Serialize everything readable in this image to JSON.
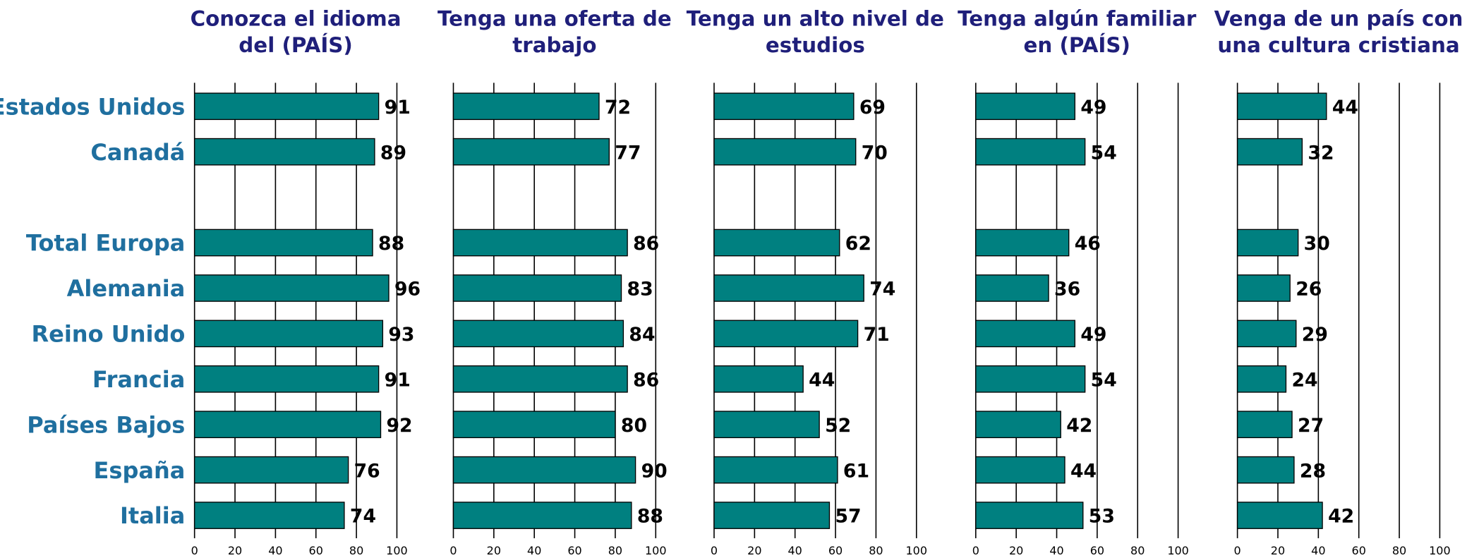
{
  "chart_data": [
    {
      "type": "bar",
      "orientation": "horizontal",
      "title": [
        "Conozca el idioma",
        "del (PAÍS)"
      ],
      "categories": [
        "Estados Unidos",
        "Canadá",
        null,
        "Total Europa",
        "Alemania",
        "Reino Unido",
        "Francia",
        "Países Bajos",
        "España",
        "Italia"
      ],
      "values": [
        91,
        89,
        null,
        88,
        96,
        93,
        91,
        92,
        76,
        74
      ],
      "color": "#008080",
      "xlim": [
        0,
        100
      ],
      "xticks": [
        0,
        20,
        40,
        60,
        80,
        100
      ],
      "grid": true
    },
    {
      "type": "bar",
      "orientation": "horizontal",
      "title": [
        "Tenga una oferta de",
        "trabajo"
      ],
      "values": [
        72,
        77,
        null,
        86,
        83,
        84,
        86,
        80,
        90,
        88
      ],
      "color": "#008080",
      "xlim": [
        0,
        100
      ],
      "xticks": [
        0,
        20,
        40,
        60,
        80,
        100
      ],
      "grid": true
    },
    {
      "type": "bar",
      "orientation": "horizontal",
      "title": [
        "Tenga un alto nivel de",
        "estudios"
      ],
      "values": [
        69,
        70,
        null,
        62,
        74,
        71,
        44,
        52,
        61,
        57
      ],
      "color": "#008080",
      "xlim": [
        0,
        100
      ],
      "xticks": [
        0,
        20,
        40,
        60,
        80,
        100
      ],
      "grid": true
    },
    {
      "type": "bar",
      "orientation": "horizontal",
      "title": [
        "Tenga algún familiar",
        "en (PAÍS)"
      ],
      "values": [
        49,
        54,
        null,
        46,
        36,
        49,
        54,
        42,
        44,
        53
      ],
      "color": "#008080",
      "xlim": [
        0,
        100
      ],
      "xticks": [
        0,
        20,
        40,
        60,
        80,
        100
      ],
      "grid": true
    },
    {
      "type": "bar",
      "orientation": "horizontal",
      "title": [
        "Venga de un país con",
        "una cultura cristiana"
      ],
      "values": [
        44,
        32,
        null,
        30,
        26,
        29,
        24,
        27,
        28,
        42
      ],
      "color": "#008080",
      "xlim": [
        0,
        100
      ],
      "xticks": [
        0,
        20,
        40,
        60,
        80,
        100
      ],
      "grid": true
    }
  ]
}
